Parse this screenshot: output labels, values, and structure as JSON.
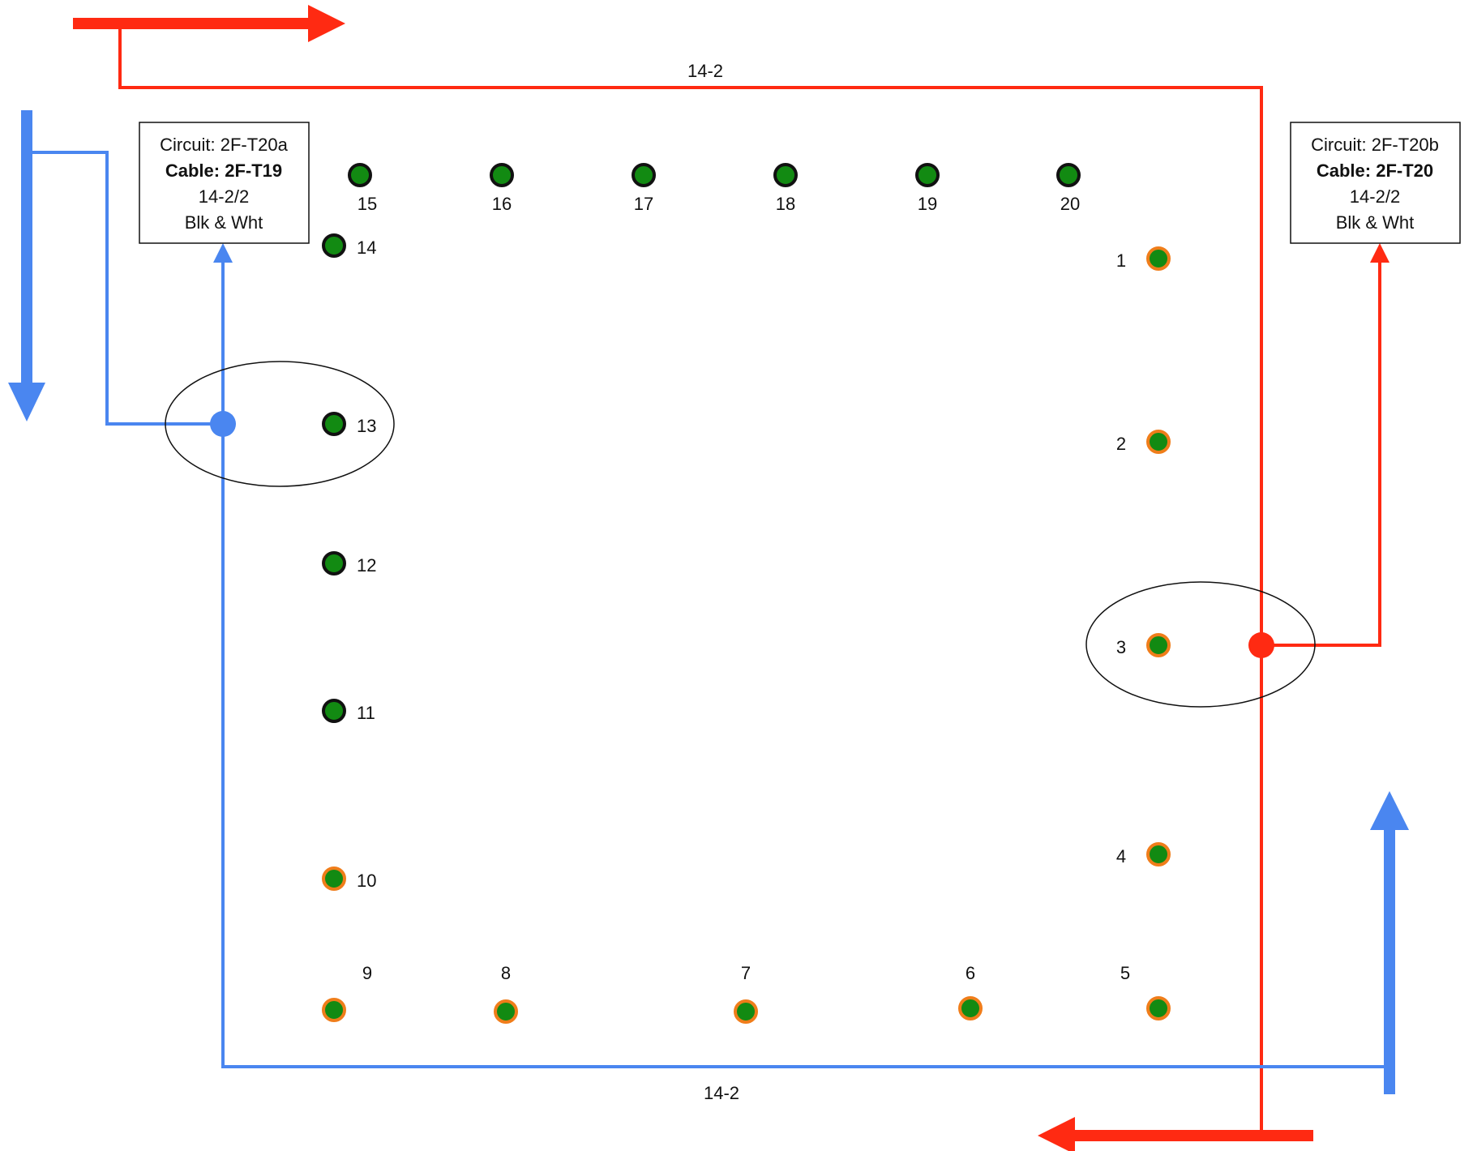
{
  "colors": {
    "red_cable": "#ff2a12",
    "blue_cable": "#4a86f0",
    "fixture_fill": "#128a12",
    "fixture_outline_dark": "#111111",
    "fixture_outline_orange": "#f07d1a"
  },
  "cable_labels": {
    "top": "14-2",
    "bottom": "14-2"
  },
  "boxes": {
    "left": {
      "circuit": "Circuit: 2F-T20a",
      "cable": "Cable: 2F-T19",
      "gauge": "14-2/2",
      "colors": "Blk & Wht"
    },
    "right": {
      "circuit": "Circuit: 2F-T20b",
      "cable": "Cable: 2F-T20",
      "gauge": "14-2/2",
      "colors": "Blk & Wht"
    }
  },
  "fixtures": {
    "f1": "1",
    "f2": "2",
    "f3": "3",
    "f4": "4",
    "f5": "5",
    "f6": "6",
    "f7": "7",
    "f8": "8",
    "f9": "9",
    "f10": "10",
    "f11": "11",
    "f12": "12",
    "f13": "13",
    "f14": "14",
    "f15": "15",
    "f16": "16",
    "f17": "17",
    "f18": "18",
    "f19": "19",
    "f20": "20"
  }
}
